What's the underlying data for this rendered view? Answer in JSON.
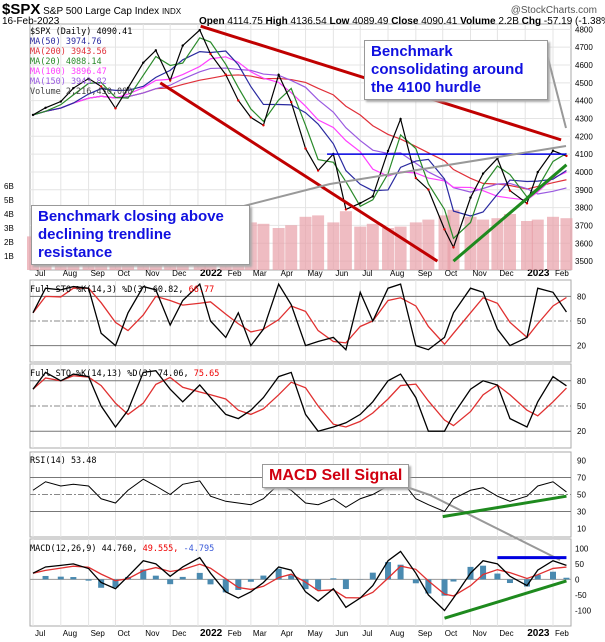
{
  "header": {
    "symbol": "$SPX",
    "name": "S&P 500 Large Cap Index",
    "exchange": "INDX",
    "date": "16-Feb-2023",
    "logo": "@StockCharts.com",
    "open_label": "Open",
    "open": "4114.75",
    "high_label": "High",
    "high": "4136.54",
    "low_label": "Low",
    "low": "4089.49",
    "close_label": "Close",
    "close": "4090.41",
    "volume_label": "Volume",
    "volume": "2.2B",
    "chg_label": "Chg",
    "chg": "-57.19 (-1.38%)"
  },
  "legend": {
    "price": "$SPX (Daily) 4090.41",
    "ma50": "MA(50) 3974.76",
    "ma200": "MA(200) 3943.56",
    "ma20": "MA(20) 4088.14",
    "ma100": "MA(100) 3896.47",
    "ma150": "MA(150) 3943.82",
    "volume": "Volume 2,216,430,080"
  },
  "colors": {
    "ma50": "#2a2aa0",
    "ma200": "#e0303a",
    "ma20": "#2a8a2a",
    "ma100": "#ff40ff",
    "ma150": "#9a5ae0",
    "trend_red": "#c00000",
    "trend_green": "#1e8a1e",
    "line_blue": "#0000e0",
    "volume": "#e8a0a8"
  },
  "annotations": {
    "consolidating": "Benchmark consolidating around the 4100 hurdle",
    "closing_above": "Benchmark closing above declining trendline resistance",
    "macd_sell": "MACD Sell Signal"
  },
  "panels": {
    "sto1": {
      "title": "Full STO %K(14,3) %D(3) 60.82, ",
      "d": "66.77"
    },
    "sto2": {
      "title": "Full STO %K(14,13) %D(3) 74.06, ",
      "d": "75.65"
    },
    "rsi": {
      "title": "RSI(14) 53.48"
    },
    "macd": {
      "title": "MACD(12,26,9) 44.760, ",
      "signal": "49.555, ",
      "hist": "-4.795"
    }
  },
  "chart_data": {
    "type": "line",
    "x_tick_labels": [
      "Jul",
      "Aug",
      "Sep",
      "Oct",
      "Nov",
      "Dec",
      "2022",
      "Feb",
      "Mar",
      "Apr",
      "May",
      "Jun",
      "Jul",
      "Aug",
      "Sep",
      "Oct",
      "Nov",
      "Dec",
      "2023",
      "Feb"
    ],
    "dates": [
      "2021-07-01",
      "2021-07-15",
      "2021-08-01",
      "2021-08-15",
      "2021-09-01",
      "2021-09-15",
      "2021-10-01",
      "2021-10-15",
      "2021-11-01",
      "2021-11-15",
      "2021-12-01",
      "2021-12-15",
      "2022-01-03",
      "2022-01-15",
      "2022-02-01",
      "2022-02-15",
      "2022-03-01",
      "2022-03-15",
      "2022-04-01",
      "2022-04-15",
      "2022-05-01",
      "2022-05-15",
      "2022-06-01",
      "2022-06-15",
      "2022-07-01",
      "2022-07-15",
      "2022-08-01",
      "2022-08-15",
      "2022-09-01",
      "2022-09-15",
      "2022-10-03",
      "2022-10-13",
      "2022-11-01",
      "2022-11-15",
      "2022-12-01",
      "2022-12-15",
      "2023-01-03",
      "2023-01-15",
      "2023-02-01",
      "2023-02-16"
    ],
    "price": {
      "yticks": [
        4800,
        4700,
        4600,
        4500,
        4400,
        4300,
        4200,
        4100,
        4000,
        3900,
        3800,
        3700,
        3600,
        3500
      ],
      "ylim": [
        3450,
        4830
      ],
      "values": [
        4320,
        4360,
        4395,
        4470,
        4524,
        4480,
        4357,
        4471,
        4613,
        4682,
        4513,
        4709,
        4796,
        4662,
        4546,
        4401,
        4306,
        4262,
        4545,
        4392,
        4131,
        4008,
        4101,
        3790,
        3825,
        3863,
        4118,
        4297,
        3966,
        3901,
        3678,
        3577,
        3856,
        3991,
        4076,
        3895,
        3824,
        3999,
        4119,
        4090
      ]
    },
    "volume": {
      "yticks": [
        "6B",
        "5B",
        "4B",
        "3B",
        "2B",
        "1B"
      ],
      "values": [
        2.4,
        2.3,
        2.5,
        2.4,
        2.6,
        2.8,
        2.9,
        2.6,
        2.7,
        2.8,
        3.2,
        3.0,
        3.1,
        3.6,
        3.3,
        3.2,
        3.4,
        3.3,
        3.0,
        3.2,
        3.8,
        3.9,
        3.4,
        4.2,
        3.1,
        3.3,
        3.0,
        3.1,
        3.4,
        3.6,
        3.9,
        4.3,
        3.8,
        3.6,
        3.7,
        4.0,
        3.5,
        3.6,
        3.8,
        3.7
      ]
    },
    "trendlines": [
      {
        "type": "resistance",
        "color": "red",
        "from": [
          "2022-01-04",
          4818
        ],
        "to": [
          "2023-02-10",
          4180
        ]
      },
      {
        "type": "channel",
        "color": "red",
        "from": [
          "2021-11-20",
          4500
        ],
        "to": [
          "2022-09-25",
          3500
        ]
      },
      {
        "type": "horizontal",
        "color": "blue",
        "from": [
          "2022-05-25",
          4100
        ],
        "to": [
          "2023-02-16",
          4100
        ]
      },
      {
        "type": "support",
        "color": "green",
        "from": [
          "2022-10-13",
          3500
        ],
        "to": [
          "2023-02-16",
          4040
        ]
      }
    ],
    "sto1": {
      "yticks": [
        80,
        50,
        20
      ],
      "k": [
        60,
        90,
        88,
        92,
        90,
        35,
        20,
        60,
        92,
        88,
        45,
        75,
        95,
        50,
        30,
        60,
        20,
        40,
        95,
        70,
        20,
        25,
        30,
        15,
        85,
        50,
        90,
        95,
        20,
        15,
        30,
        60,
        90,
        85,
        40,
        20,
        30,
        90,
        85,
        61
      ]
    },
    "sto2": {
      "yticks": [
        80,
        50,
        20
      ],
      "k": [
        70,
        90,
        80,
        88,
        85,
        50,
        25,
        45,
        90,
        92,
        70,
        55,
        75,
        60,
        40,
        35,
        45,
        60,
        85,
        90,
        40,
        20,
        25,
        30,
        40,
        55,
        80,
        88,
        60,
        20,
        20,
        40,
        70,
        80,
        75,
        35,
        25,
        55,
        85,
        74
      ]
    },
    "rsi": {
      "yticks": [
        90,
        70,
        50,
        30,
        10
      ],
      "values": [
        55,
        65,
        60,
        62,
        60,
        45,
        40,
        55,
        68,
        60,
        50,
        62,
        66,
        48,
        42,
        40,
        38,
        45,
        62,
        55,
        40,
        38,
        45,
        35,
        45,
        50,
        60,
        68,
        45,
        38,
        30,
        45,
        55,
        58,
        48,
        42,
        48,
        60,
        65,
        53
      ],
      "support": {
        "from": [
          "2022-10-01",
          24
        ],
        "to": [
          "2023-02-16",
          48
        ]
      }
    },
    "macd": {
      "yticks": [
        100,
        50,
        0,
        -50,
        -100
      ],
      "values": [
        20,
        40,
        45,
        50,
        35,
        -10,
        -30,
        10,
        60,
        50,
        10,
        40,
        70,
        20,
        -40,
        -60,
        -40,
        -10,
        40,
        30,
        -40,
        -70,
        -30,
        -90,
        -60,
        -20,
        60,
        90,
        20,
        -50,
        -100,
        -60,
        20,
        60,
        50,
        10,
        -20,
        30,
        60,
        45
      ],
      "resistance": {
        "from": [
          "2022-12-01",
          70
        ],
        "to": [
          "2023-02-16",
          70
        ]
      },
      "support": {
        "from": [
          "2022-10-03",
          -125
        ],
        "to": [
          "2023-02-16",
          -5
        ]
      }
    }
  }
}
